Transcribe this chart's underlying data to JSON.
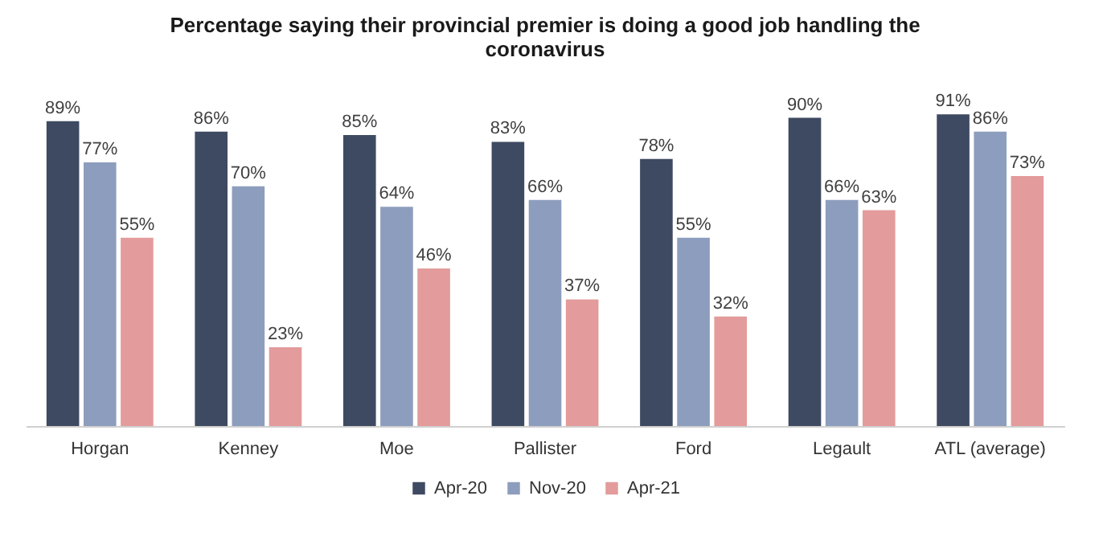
{
  "chart_data": {
    "type": "bar",
    "title": "Percentage saying their provincial premier is doing a good job handling the coronavirus",
    "categories": [
      "Horgan",
      "Kenney",
      "Moe",
      "Pallister",
      "Ford",
      "Legault",
      "ATL (average)"
    ],
    "series": [
      {
        "name": "Apr-20",
        "color": "#3e4a61",
        "values": [
          89,
          86,
          85,
          83,
          78,
          90,
          91
        ],
        "value_labels": [
          "89%",
          "86%",
          "85%",
          "83%",
          "78%",
          "90%",
          "91%"
        ]
      },
      {
        "name": "Nov-20",
        "color": "#8d9dbd",
        "values": [
          77,
          70,
          64,
          66,
          55,
          66,
          86
        ],
        "value_labels": [
          "77%",
          "70%",
          "64%",
          "66%",
          "55%",
          "66%",
          "86%"
        ]
      },
      {
        "name": "Apr-21",
        "color": "#e39b9b",
        "values": [
          55,
          23,
          46,
          37,
          32,
          63,
          73
        ],
        "value_labels": [
          "55%",
          "23%",
          "46%",
          "37%",
          "32%",
          "63%",
          "73%"
        ]
      }
    ],
    "legend": "bottom"
  }
}
